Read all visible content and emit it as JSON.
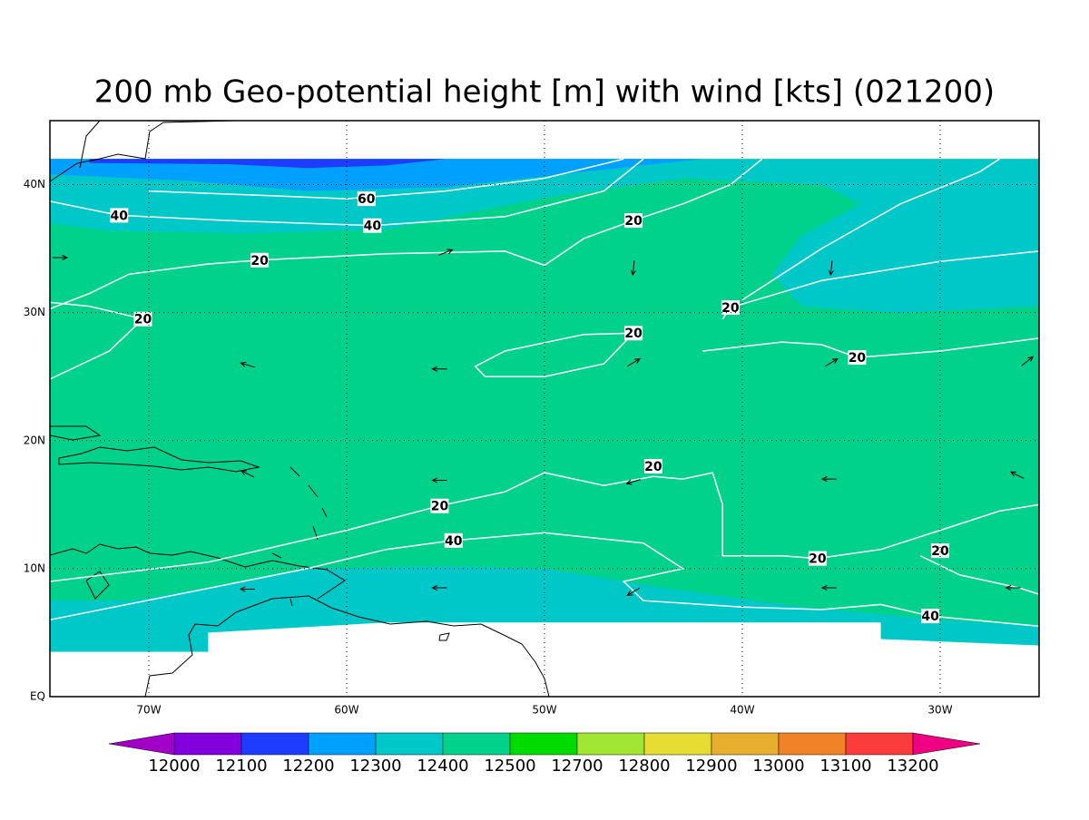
{
  "map": {
    "title": "200 mb Geo-potential height [m] with wind [kts] (021200)",
    "xlim": [
      -75,
      -25
    ],
    "ylim": [
      0,
      45
    ],
    "xticks": [
      {
        "value": -70,
        "label": "70W"
      },
      {
        "value": -60,
        "label": "60W"
      },
      {
        "value": -50,
        "label": "50W"
      },
      {
        "value": -40,
        "label": "40W"
      },
      {
        "value": -30,
        "label": "30W"
      }
    ],
    "yticks": [
      {
        "value": 0,
        "label": "EQ"
      },
      {
        "value": 10,
        "label": "10N"
      },
      {
        "value": 20,
        "label": "20N"
      },
      {
        "value": 30,
        "label": "30N"
      },
      {
        "value": 40,
        "label": "40N"
      }
    ],
    "grid": true,
    "colorbar": {
      "levels": [
        12000,
        12100,
        12200,
        12300,
        12400,
        12500,
        12700,
        12800,
        12900,
        13000,
        13100,
        13200
      ],
      "colors": [
        "#a000c8",
        "#8200dc",
        "#1e3cff",
        "#00a0ff",
        "#00c8c8",
        "#00d28c",
        "#00dc00",
        "#a0e632",
        "#e6dc32",
        "#e6af2d",
        "#f08228",
        "#fa3c3c",
        "#f00082"
      ]
    },
    "shading": [
      {
        "color": "#00d28c",
        "polygon": [
          [
            -75,
            3.5
          ],
          [
            -25,
            3.5
          ],
          [
            -25,
            42
          ],
          [
            -75,
            42
          ]
        ]
      },
      {
        "color": "#00c8c8",
        "polygon": [
          [
            -75,
            42
          ],
          [
            -25,
            42
          ],
          [
            -25,
            30.5
          ],
          [
            -32,
            30
          ],
          [
            -37,
            30.5
          ],
          [
            -38.5,
            33
          ],
          [
            -37,
            36
          ],
          [
            -34,
            38.5
          ],
          [
            -36,
            40
          ],
          [
            -43,
            40.5
          ],
          [
            -50,
            39
          ],
          [
            -58,
            36.5
          ],
          [
            -65,
            36.2
          ],
          [
            -72,
            36.4
          ],
          [
            -75,
            37
          ]
        ]
      },
      {
        "color": "#00a0ff",
        "polygon": [
          [
            -75,
            42
          ],
          [
            -42,
            42
          ],
          [
            -48,
            41
          ],
          [
            -55,
            39.8
          ],
          [
            -62,
            39.5
          ],
          [
            -68,
            40.3
          ],
          [
            -75,
            40.8
          ]
        ]
      },
      {
        "color": "#1e3cff",
        "polygon": [
          [
            -73,
            42
          ],
          [
            -55,
            42
          ],
          [
            -58,
            41.5
          ],
          [
            -62,
            41.3
          ],
          [
            -66,
            41.6
          ],
          [
            -73,
            41.7
          ]
        ]
      },
      {
        "color": "#00c8c8",
        "polygon": [
          [
            -75,
            3.5
          ],
          [
            -25,
            3.5
          ],
          [
            -25,
            5.5
          ],
          [
            -30,
            6
          ],
          [
            -37,
            7
          ],
          [
            -44,
            8.5
          ],
          [
            -50,
            10
          ],
          [
            -55,
            10.2
          ],
          [
            -62,
            10
          ],
          [
            -67,
            8.5
          ],
          [
            -71,
            7.5
          ],
          [
            -75,
            7.5
          ]
        ]
      },
      {
        "color": "#ffffff",
        "polygon": [
          [
            -67,
            3.5
          ],
          [
            -67,
            5
          ],
          [
            -58,
            5.8
          ],
          [
            -33,
            5.8
          ],
          [
            -33,
            4.5
          ],
          [
            -25,
            4
          ],
          [
            -25,
            0
          ],
          [
            -75,
            0
          ],
          [
            -75,
            3.5
          ]
        ]
      }
    ],
    "contours": [
      {
        "points": [
          [
            -70,
            39.5
          ],
          [
            -65,
            39.2
          ],
          [
            -60,
            38.9
          ],
          [
            -55,
            39.5
          ],
          [
            -50,
            40.5
          ],
          [
            -46,
            42
          ]
        ]
      },
      {
        "points": [
          [
            -75,
            38.7
          ],
          [
            -71.5,
            37.6
          ],
          [
            -66,
            37.2
          ],
          [
            -58.7,
            36.8
          ],
          [
            -52,
            37.5
          ],
          [
            -47,
            39.5
          ],
          [
            -45,
            42
          ]
        ]
      },
      {
        "points": [
          [
            -75,
            30.3
          ],
          [
            -73,
            31.5
          ],
          [
            -71,
            33
          ],
          [
            -67,
            33.8
          ],
          [
            -64.4,
            34.1
          ],
          [
            -58,
            34.6
          ],
          [
            -52,
            34.8
          ],
          [
            -50,
            33.7
          ],
          [
            -48,
            35.8
          ],
          [
            -45.5,
            37.2
          ],
          [
            -43,
            38.5
          ],
          [
            -40.6,
            40
          ],
          [
            -39,
            42
          ]
        ]
      },
      {
        "points": [
          [
            -41,
            29.5
          ],
          [
            -40.6,
            30.4
          ],
          [
            -36,
            32.5
          ],
          [
            -30,
            34
          ],
          [
            -25,
            34.8
          ]
        ]
      },
      {
        "points": [
          [
            -40,
            31
          ],
          [
            -36,
            35
          ],
          [
            -32,
            38.5
          ],
          [
            -28,
            41
          ],
          [
            -27,
            42
          ]
        ]
      },
      {
        "points": [
          [
            -42,
            27
          ],
          [
            -38,
            27.7
          ],
          [
            -36,
            27.5
          ],
          [
            -34.2,
            26.5
          ],
          [
            -30,
            27
          ],
          [
            -25,
            28
          ]
        ]
      },
      {
        "points": [
          [
            -53,
            25
          ],
          [
            -50,
            25
          ],
          [
            -47,
            26
          ],
          [
            -45.5,
            28.4
          ],
          [
            -48,
            28.3
          ],
          [
            -52,
            27
          ],
          [
            -53.5,
            25.8
          ],
          [
            -53,
            25
          ]
        ]
      },
      {
        "points": [
          [
            -75,
            24.8
          ],
          [
            -72,
            27
          ],
          [
            -70.3,
            29.5
          ],
          [
            -73,
            30.5
          ],
          [
            -75,
            30.8
          ]
        ]
      },
      {
        "points": [
          [
            -75,
            9
          ],
          [
            -67,
            10.5
          ],
          [
            -60,
            13
          ],
          [
            -55.3,
            14.9
          ],
          [
            -52,
            16
          ],
          [
            -50,
            17.5
          ],
          [
            -47,
            16.5
          ],
          [
            -44.5,
            17.2
          ],
          [
            -43,
            17
          ],
          [
            -41.5,
            17.5
          ],
          [
            -41,
            15
          ],
          [
            -41,
            11
          ],
          [
            -38,
            11
          ],
          [
            -36.2,
            10.8
          ],
          [
            -33,
            11.5
          ],
          [
            -30,
            13
          ],
          [
            -27,
            14.5
          ],
          [
            -25,
            15
          ]
        ]
      },
      {
        "points": [
          [
            -75,
            6
          ],
          [
            -62,
            10
          ],
          [
            -58,
            11.5
          ],
          [
            -54.6,
            12.2
          ],
          [
            -50,
            12.8
          ],
          [
            -45,
            12
          ],
          [
            -43,
            10
          ],
          [
            -46,
            9
          ],
          [
            -45,
            7.5
          ],
          [
            -40,
            7
          ],
          [
            -36,
            6.8
          ],
          [
            -33,
            7.2
          ],
          [
            -30.5,
            6.3
          ],
          [
            -27,
            5.8
          ],
          [
            -25,
            5.5
          ]
        ]
      },
      {
        "points": [
          [
            -31,
            11
          ],
          [
            -29,
            9.5
          ],
          [
            -26,
            8.5
          ],
          [
            -25,
            8
          ]
        ]
      }
    ],
    "contour_labels": [
      {
        "text": "60",
        "lon": -59.0,
        "lat": 38.9
      },
      {
        "text": "40",
        "lon": -71.5,
        "lat": 37.6
      },
      {
        "text": "40",
        "lon": -58.7,
        "lat": 36.8
      },
      {
        "text": "20",
        "lon": -64.4,
        "lat": 34.1
      },
      {
        "text": "20",
        "lon": -45.5,
        "lat": 37.2
      },
      {
        "text": "20",
        "lon": -70.3,
        "lat": 29.5
      },
      {
        "text": "20",
        "lon": -40.6,
        "lat": 30.4
      },
      {
        "text": "20",
        "lon": -45.5,
        "lat": 28.4
      },
      {
        "text": "20",
        "lon": -34.2,
        "lat": 26.5
      },
      {
        "text": "20",
        "lon": -44.5,
        "lat": 18.0
      },
      {
        "text": "20",
        "lon": -55.3,
        "lat": 14.9
      },
      {
        "text": "40",
        "lon": -54.6,
        "lat": 12.2
      },
      {
        "text": "20",
        "lon": -36.2,
        "lat": 10.8
      },
      {
        "text": "20",
        "lon": -30.0,
        "lat": 11.4
      },
      {
        "text": "40",
        "lon": -30.5,
        "lat": 6.3
      }
    ],
    "vectors": [
      {
        "lon": -74.5,
        "lat": 34.3,
        "u": 1,
        "v": 0
      },
      {
        "lon": -55,
        "lat": 34.7,
        "u": 1,
        "v": 0.4
      },
      {
        "lon": -45.5,
        "lat": 33.5,
        "u": -0.1,
        "v": -1
      },
      {
        "lon": -35.5,
        "lat": 33.5,
        "u": -0.1,
        "v": -1
      },
      {
        "lon": -65,
        "lat": 25.9,
        "u": -1,
        "v": 0.3
      },
      {
        "lon": -55.3,
        "lat": 25.6,
        "u": -1,
        "v": 0
      },
      {
        "lon": -45.5,
        "lat": 26.1,
        "u": 1,
        "v": 0.6
      },
      {
        "lon": -35.5,
        "lat": 26.1,
        "u": 1,
        "v": 0.6
      },
      {
        "lon": -25.6,
        "lat": 26.2,
        "u": 1,
        "v": 0.8
      },
      {
        "lon": -65,
        "lat": 17.4,
        "u": -1,
        "v": 0.5
      },
      {
        "lon": -55.3,
        "lat": 16.9,
        "u": -1,
        "v": 0
      },
      {
        "lon": -45.5,
        "lat": 16.8,
        "u": -1,
        "v": -0.3
      },
      {
        "lon": -35.6,
        "lat": 17.0,
        "u": -1,
        "v": 0
      },
      {
        "lon": -26.1,
        "lat": 17.3,
        "u": -1,
        "v": 0.5
      },
      {
        "lon": -65,
        "lat": 8.4,
        "u": -1,
        "v": 0
      },
      {
        "lon": -55.3,
        "lat": 8.5,
        "u": -1,
        "v": 0
      },
      {
        "lon": -45.5,
        "lat": 8.2,
        "u": -1,
        "v": -0.6
      },
      {
        "lon": -35.6,
        "lat": 8.5,
        "u": -1,
        "v": 0
      },
      {
        "lon": -26.3,
        "lat": 8.5,
        "u": -1,
        "v": 0
      }
    ]
  }
}
